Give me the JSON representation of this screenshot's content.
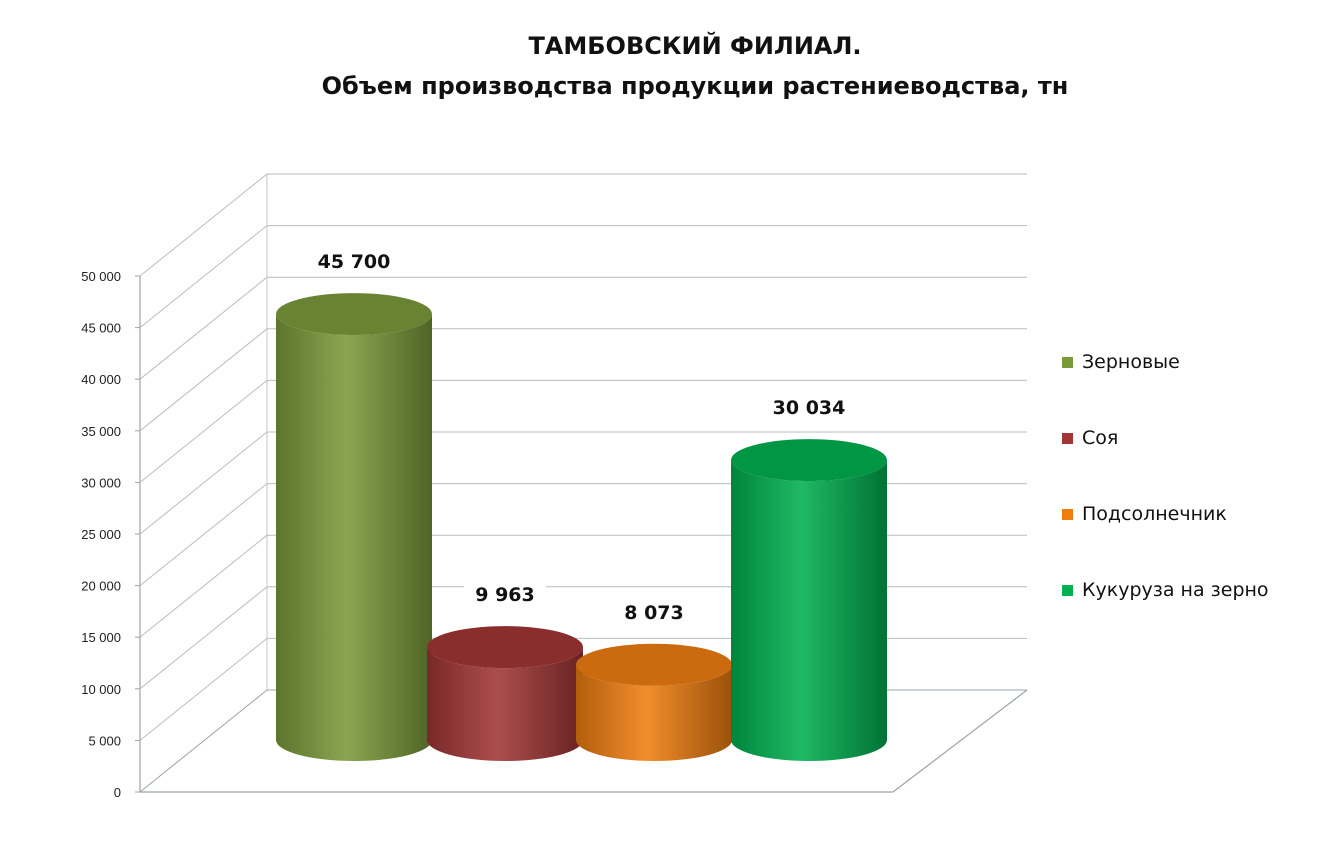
{
  "chart_data": {
    "type": "bar",
    "title": "ТАМБОВСКИЙ ФИЛИАЛ.",
    "subtitle": "Объем производства продукции растениеводства, тн",
    "categories": [
      "Зерновые",
      "Соя",
      "Подсолнечник",
      "Кукуруза на зерно"
    ],
    "values": [
      45700,
      9963,
      8073,
      30034
    ],
    "value_labels": [
      "45 700",
      "9 963",
      "8 073",
      "30 034"
    ],
    "colors": [
      "#7a9a3a",
      "#a13535",
      "#ef7d10",
      "#00b050"
    ],
    "ylim": [
      0,
      50000
    ],
    "yticks": [
      0,
      5000,
      10000,
      15000,
      20000,
      25000,
      30000,
      35000,
      40000,
      45000,
      50000
    ],
    "ytick_labels": [
      "0",
      "5 000",
      "10 000",
      "15 000",
      "20 000",
      "25 000",
      "30 000",
      "35 000",
      "40 000",
      "45 000",
      "50 000"
    ],
    "grid": true,
    "legend": "right",
    "bar_shape": "cylinder-3d"
  }
}
